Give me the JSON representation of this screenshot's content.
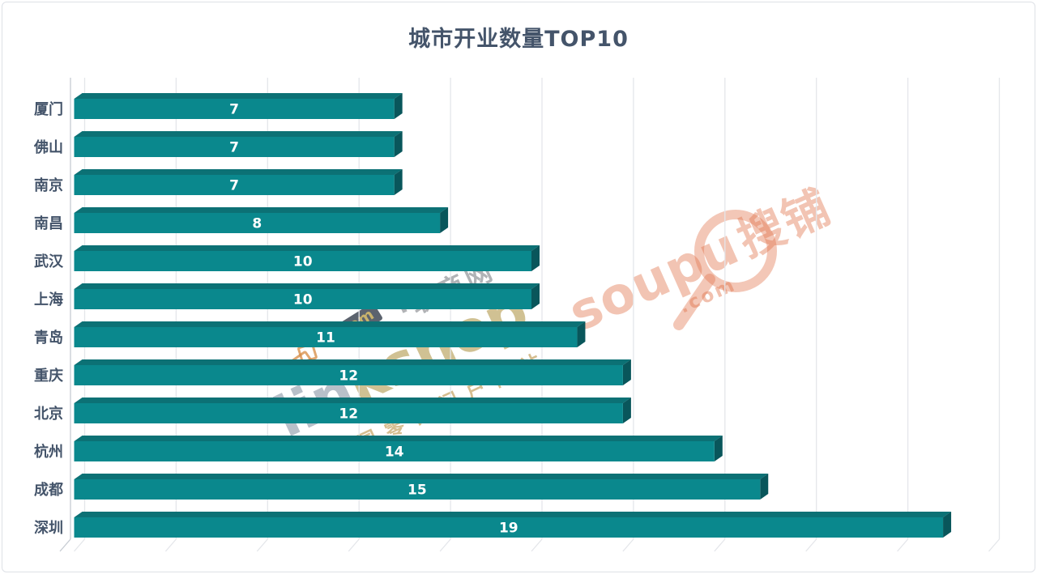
{
  "page": {
    "title": "城市开业数量TOP10"
  },
  "chart_data": {
    "type": "bar",
    "orientation": "horizontal",
    "title": "城市开业数量TOP10",
    "categories": [
      "厦门",
      "佛山",
      "南京",
      "南昌",
      "武汉",
      "上海",
      "青岛",
      "重庆",
      "北京",
      "杭州",
      "成都",
      "深圳"
    ],
    "values": [
      7,
      7,
      7,
      8,
      10,
      10,
      11,
      12,
      12,
      14,
      15,
      19
    ],
    "xlabel": "",
    "ylabel": "",
    "xlim": [
      0,
      20
    ],
    "grid_step": 2,
    "grid": "on",
    "legend": "none",
    "value_labels": "inside-center-white",
    "style": "3d-horizontal-bars",
    "colors": {
      "bar_front": "#0A888D",
      "bar_top": "#0C7175",
      "bar_side": "#09565B",
      "axis_text": "#44546A",
      "value_text": "#FFFFFF",
      "gridline": "#E4E6EA",
      "axis_line": "#C6CBD2",
      "title_text": "#44546A"
    }
  },
  "watermarks": {
    "linkshop": {
      "brand_part1": "lin",
      "brand_part2": "kshop",
      "dotcom": ".com",
      "cn_name": "·联商网",
      "tagline": "中国零售门户网站"
    },
    "soupu": {
      "brand": "soupu",
      "dotcom": ".com",
      "cn_name": "搜铺"
    }
  }
}
